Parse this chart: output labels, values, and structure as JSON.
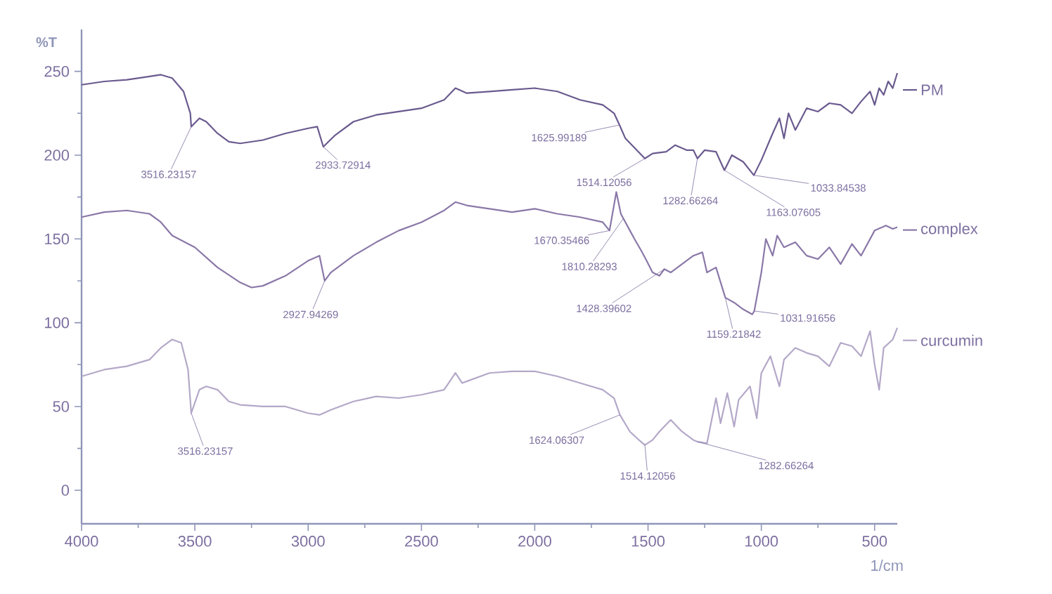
{
  "chart_data": {
    "type": "line",
    "xlabel": "1/cm",
    "ylabel": "%T",
    "xlim": [
      4000,
      400
    ],
    "ylim": [
      -20,
      275
    ],
    "xticks": [
      4000,
      {
        "value": 3750,
        "label": null
      },
      3500,
      {
        "value": 3250,
        "label": null
      },
      3000,
      {
        "value": 2750,
        "label": null
      },
      2500,
      {
        "value": 2250,
        "label": null
      },
      2000,
      {
        "value": 1750,
        "label": null
      },
      1500,
      {
        "value": 1250,
        "label": null
      },
      1000,
      {
        "value": 750,
        "label": null
      },
      500
    ],
    "yticks": [
      0,
      {
        "value": 25,
        "label": null
      },
      50,
      {
        "value": 75,
        "label": null
      },
      100,
      {
        "value": 125,
        "label": null
      },
      150,
      {
        "value": 175,
        "label": null
      },
      200,
      {
        "value": 225,
        "label": null
      },
      250
    ],
    "grid": false,
    "legend": "right",
    "series": [
      {
        "name": "PM",
        "color": "#6a5a8e",
        "x": [
          4000,
          3900,
          3800,
          3700,
          3650,
          3600,
          3550,
          3520,
          3516,
          3480,
          3450,
          3400,
          3350,
          3300,
          3200,
          3100,
          3000,
          2960,
          2933,
          2880,
          2800,
          2700,
          2600,
          2500,
          2400,
          2350,
          2300,
          2200,
          2100,
          2000,
          1900,
          1800,
          1700,
          1650,
          1626,
          1600,
          1550,
          1514,
          1480,
          1420,
          1380,
          1330,
          1300,
          1282,
          1250,
          1200,
          1163,
          1130,
          1080,
          1033,
          1000,
          950,
          920,
          900,
          880,
          850,
          800,
          750,
          700,
          650,
          600,
          560,
          520,
          500,
          480,
          460,
          440,
          420,
          400
        ],
        "values": [
          242,
          244,
          245,
          247,
          248,
          246,
          238,
          225,
          217,
          222,
          220,
          213,
          208,
          207,
          209,
          213,
          216,
          217,
          205,
          212,
          220,
          224,
          226,
          228,
          233,
          240,
          237,
          238,
          239,
          240,
          238,
          233,
          230,
          225,
          218,
          210,
          203,
          198,
          201,
          202,
          206,
          203,
          203,
          198,
          203,
          202,
          191,
          200,
          196,
          188,
          197,
          213,
          222,
          210,
          225,
          215,
          228,
          226,
          231,
          230,
          225,
          232,
          238,
          230,
          240,
          236,
          244,
          240,
          249
        ]
      },
      {
        "name": "complex",
        "color": "#8a78a8",
        "x": [
          4000,
          3900,
          3800,
          3700,
          3650,
          3600,
          3500,
          3400,
          3300,
          3250,
          3200,
          3100,
          3000,
          2950,
          2927,
          2900,
          2800,
          2700,
          2600,
          2500,
          2400,
          2350,
          2300,
          2200,
          2100,
          2000,
          1900,
          1800,
          1700,
          1670,
          1640,
          1620,
          1580,
          1560,
          1530,
          1510,
          1480,
          1450,
          1428,
          1400,
          1350,
          1300,
          1260,
          1240,
          1200,
          1159,
          1120,
          1080,
          1040,
          1031,
          1000,
          980,
          950,
          930,
          900,
          850,
          800,
          750,
          700,
          650,
          600,
          560,
          500,
          450,
          420,
          400
        ],
        "values": [
          163,
          166,
          167,
          165,
          160,
          152,
          145,
          133,
          124,
          121,
          122,
          128,
          137,
          140,
          125,
          130,
          140,
          148,
          155,
          160,
          167,
          172,
          170,
          168,
          166,
          168,
          165,
          163,
          160,
          155,
          178,
          165,
          155,
          150,
          143,
          138,
          130,
          128,
          132,
          130,
          135,
          140,
          142,
          130,
          133,
          115,
          112,
          108,
          105,
          107,
          130,
          150,
          140,
          152,
          145,
          148,
          140,
          138,
          145,
          135,
          147,
          140,
          155,
          158,
          156,
          157
        ]
      },
      {
        "name": "curcumin",
        "color": "#b4a8c8",
        "x": [
          4000,
          3900,
          3800,
          3700,
          3650,
          3600,
          3560,
          3530,
          3516,
          3480,
          3450,
          3400,
          3350,
          3300,
          3200,
          3100,
          3000,
          2950,
          2900,
          2800,
          2700,
          2600,
          2500,
          2400,
          2350,
          2320,
          2300,
          2200,
          2100,
          2000,
          1900,
          1800,
          1700,
          1650,
          1624,
          1580,
          1540,
          1514,
          1480,
          1450,
          1400,
          1350,
          1300,
          1282,
          1240,
          1200,
          1180,
          1150,
          1120,
          1100,
          1050,
          1020,
          1000,
          960,
          920,
          900,
          850,
          800,
          750,
          700,
          650,
          600,
          560,
          520,
          500,
          480,
          460,
          420,
          400
        ],
        "values": [
          68,
          72,
          74,
          78,
          85,
          90,
          88,
          72,
          46,
          60,
          62,
          60,
          53,
          51,
          50,
          50,
          46,
          45,
          48,
          53,
          56,
          55,
          57,
          60,
          70,
          64,
          65,
          70,
          71,
          71,
          68,
          64,
          60,
          55,
          45,
          35,
          30,
          27,
          30,
          35,
          42,
          35,
          30,
          29,
          28,
          55,
          40,
          58,
          38,
          54,
          62,
          43,
          70,
          80,
          62,
          78,
          85,
          82,
          80,
          74,
          88,
          86,
          80,
          95,
          75,
          60,
          85,
          90,
          97
        ]
      }
    ],
    "annotations": [
      {
        "text": "3516.23157",
        "x": 3516,
        "y": 217
      },
      {
        "text": "2933.72914",
        "x": 2933,
        "y": 205
      },
      {
        "text": "1625.99189",
        "x": 1626,
        "y": 218
      },
      {
        "text": "1514.12056",
        "x": 1514,
        "y": 198
      },
      {
        "text": "1282.66264",
        "x": 1282,
        "y": 198
      },
      {
        "text": "1163.07605",
        "x": 1163,
        "y": 191
      },
      {
        "text": "1033.84538",
        "x": 1033,
        "y": 188
      },
      {
        "text": "2927.94269",
        "x": 2927,
        "y": 125
      },
      {
        "text": "1670.35466",
        "x": 1670,
        "y": 155
      },
      {
        "text": "1810.28293",
        "x": 1610,
        "y": 162
      },
      {
        "text": "1428.39602",
        "x": 1428,
        "y": 132
      },
      {
        "text": "1159.21842",
        "x": 1159,
        "y": 115
      },
      {
        "text": "1031.91656",
        "x": 1031,
        "y": 107
      },
      {
        "text": "3516.23157",
        "x": 3516,
        "y": 46
      },
      {
        "text": "1624.06307",
        "x": 1624,
        "y": 45
      },
      {
        "text": "1514.12056",
        "x": 1514,
        "y": 27
      },
      {
        "text": "1282.66264",
        "x": 1282,
        "y": 29
      }
    ]
  }
}
